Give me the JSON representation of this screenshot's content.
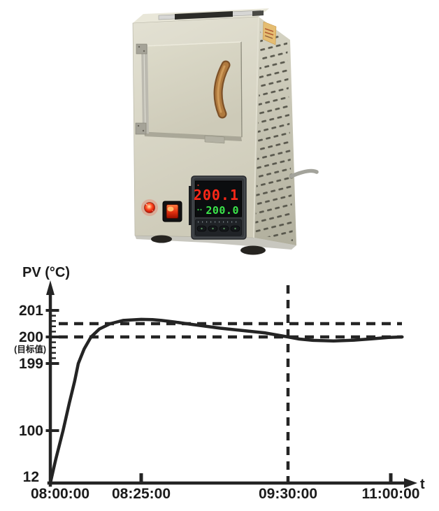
{
  "furnace": {
    "controller": {
      "pv_value": "200.1",
      "sv_value": "200.0",
      "pv_color": "#ff2818",
      "sv_color": "#3be44a",
      "display_bg": "#0b0d0f"
    },
    "colors": {
      "body": "#d8d6c6",
      "side_panel": "#c6c4b2",
      "label_sticker": "#e5bd72",
      "indicator_lamp": "#ff3518",
      "power_switch_glow": "#ff4a22",
      "wood_handle": "#b07a3e"
    }
  },
  "chart_data": {
    "type": "line",
    "title": "",
    "ylabel": "PV (°C)",
    "xlabel": "t",
    "target_label": "(目标值)",
    "target_value": 200,
    "line_color": "#242424",
    "grid": false,
    "x_ticks": [
      {
        "minutes": 0,
        "label": "08:00:00",
        "tick": false
      },
      {
        "minutes": 25,
        "label": "08:25:00",
        "tick": true
      },
      {
        "minutes": 90,
        "label": "09:30:00",
        "tick": false
      },
      {
        "minutes": 180,
        "label": "11:00:00",
        "tick": true
      }
    ],
    "y_ticks": [
      {
        "value": 201,
        "label": "201",
        "tick": true
      },
      {
        "value": 200,
        "label": "200",
        "tick": true
      },
      {
        "value": 199,
        "label": "199",
        "tick": true
      },
      {
        "value": 100,
        "label": "100",
        "tick": true
      },
      {
        "value": 12,
        "label": "12",
        "tick": false
      }
    ],
    "minor_ticks": {
      "from": 199,
      "to": 201,
      "step": 0.2
    },
    "dashed_horizontals": [
      200.5,
      200
    ],
    "dashed_vertical_minutes": 90,
    "series": [
      {
        "name": "PV",
        "points": [
          [
            0,
            12
          ],
          [
            1.5,
            52
          ],
          [
            3.5,
            100
          ],
          [
            5.2,
            140
          ],
          [
            6.7,
            173
          ],
          [
            7.7,
            199
          ],
          [
            9.3,
            199.55
          ],
          [
            11.2,
            200
          ],
          [
            13.5,
            200.3
          ],
          [
            16.5,
            200.5
          ],
          [
            20,
            200.62
          ],
          [
            25,
            200.66
          ],
          [
            30,
            200.65
          ],
          [
            34,
            200.62
          ],
          [
            40,
            200.56
          ],
          [
            45,
            200.5
          ],
          [
            52,
            200.42
          ],
          [
            60,
            200.33
          ],
          [
            70,
            200.24
          ],
          [
            80,
            200.15
          ],
          [
            90,
            200.0
          ],
          [
            100,
            199.92
          ],
          [
            112,
            199.87
          ],
          [
            130,
            199.85
          ],
          [
            148,
            199.88
          ],
          [
            163,
            199.93
          ],
          [
            178,
            199.98
          ],
          [
            190,
            200.0
          ]
        ]
      }
    ]
  }
}
